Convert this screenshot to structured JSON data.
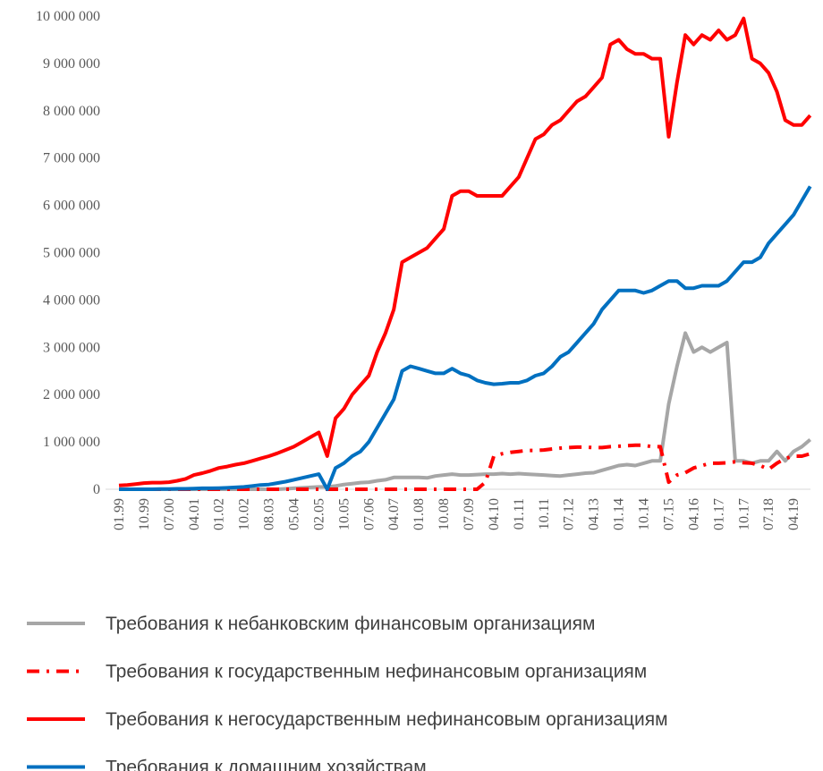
{
  "chart_data": {
    "type": "line",
    "categories": [
      "01.99",
      null,
      null,
      "10.99",
      null,
      null,
      "07.00",
      null,
      null,
      "04.01",
      null,
      null,
      "01.02",
      null,
      null,
      "10.02",
      null,
      null,
      "08.03",
      null,
      null,
      "05.04",
      null,
      null,
      "02.05",
      null,
      null,
      "10.05",
      null,
      null,
      "07.06",
      null,
      null,
      "04.07",
      null,
      null,
      "01.08",
      null,
      null,
      "10.08",
      null,
      null,
      "07.09",
      null,
      null,
      "04.10",
      null,
      null,
      "01.11",
      null,
      null,
      "10.11",
      null,
      null,
      "07.12",
      null,
      null,
      "04.13",
      null,
      null,
      "01.14",
      null,
      null,
      "10.14",
      null,
      null,
      "07.15",
      null,
      null,
      "04.16",
      null,
      null,
      "01.17",
      null,
      null,
      "10.17",
      null,
      null,
      "07.18",
      null,
      null,
      "04.19",
      null,
      null
    ],
    "series": [
      {
        "name": "Требования к небанковским финансовым организациям",
        "color": "#a6a6a6",
        "style": "solid",
        "values": [
          0,
          0,
          0,
          0,
          0,
          0,
          0,
          0,
          0,
          0,
          0,
          0,
          0,
          0,
          0,
          0,
          0,
          0,
          0,
          0,
          10000,
          20000,
          30000,
          40000,
          50000,
          50000,
          70000,
          100000,
          120000,
          140000,
          150000,
          180000,
          200000,
          250000,
          250000,
          250000,
          250000,
          240000,
          280000,
          300000,
          320000,
          300000,
          300000,
          310000,
          320000,
          320000,
          330000,
          320000,
          330000,
          320000,
          310000,
          300000,
          290000,
          280000,
          300000,
          320000,
          340000,
          350000,
          400000,
          450000,
          500000,
          520000,
          500000,
          550000,
          600000,
          600000,
          1800000,
          2600000,
          3300000,
          2900000,
          3000000,
          2900000,
          3000000,
          3100000,
          600000,
          600000,
          550000,
          600000,
          600000,
          800000,
          600000,
          800000,
          900000,
          1050000
        ]
      },
      {
        "name": "Требования к государственным нефинансовым организациям",
        "color": "#ff0000",
        "style": "dash-dot",
        "values": [
          0,
          0,
          0,
          0,
          0,
          0,
          0,
          0,
          0,
          0,
          0,
          0,
          0,
          0,
          0,
          0,
          0,
          0,
          0,
          0,
          0,
          0,
          0,
          0,
          0,
          0,
          0,
          0,
          0,
          0,
          0,
          0,
          0,
          0,
          0,
          0,
          0,
          0,
          0,
          0,
          0,
          0,
          0,
          0,
          150000,
          700000,
          750000,
          780000,
          800000,
          820000,
          820000,
          830000,
          850000,
          870000,
          880000,
          890000,
          890000,
          880000,
          880000,
          900000,
          910000,
          920000,
          930000,
          930000,
          900000,
          900000,
          150000,
          300000,
          350000,
          450000,
          500000,
          550000,
          550000,
          560000,
          580000,
          560000,
          550000,
          500000,
          420000,
          550000,
          650000,
          700000,
          700000,
          750000
        ]
      },
      {
        "name": "Требования к негосударственным нефинансовым организациям",
        "color": "#ff0000",
        "style": "solid",
        "values": [
          80000,
          90000,
          110000,
          130000,
          140000,
          140000,
          150000,
          180000,
          220000,
          300000,
          340000,
          390000,
          450000,
          480000,
          520000,
          550000,
          600000,
          650000,
          700000,
          760000,
          830000,
          900000,
          1000000,
          1100000,
          1200000,
          700000,
          1500000,
          1700000,
          2000000,
          2200000,
          2400000,
          2900000,
          3300000,
          3800000,
          4800000,
          4900000,
          5000000,
          5100000,
          5300000,
          5500000,
          6200000,
          6300000,
          6300000,
          6200000,
          6200000,
          6200000,
          6200000,
          6400000,
          6600000,
          7000000,
          7400000,
          7500000,
          7700000,
          7800000,
          8000000,
          8200000,
          8300000,
          8500000,
          8700000,
          9400000,
          9500000,
          9300000,
          9200000,
          9200000,
          9100000,
          9100000,
          7450000,
          8600000,
          9600000,
          9400000,
          9600000,
          9500000,
          9700000,
          9500000,
          9600000,
          9950000,
          9100000,
          9000000,
          8800000,
          8400000,
          7800000,
          7700000,
          7700000,
          7900000
        ]
      },
      {
        "name": "Требования к домашним хозяйствам",
        "color": "#0070c0",
        "style": "solid",
        "values": [
          0,
          0,
          0,
          0,
          0,
          5000,
          5000,
          10000,
          10000,
          15000,
          20000,
          20000,
          25000,
          30000,
          40000,
          50000,
          70000,
          90000,
          100000,
          130000,
          160000,
          200000,
          240000,
          280000,
          320000,
          0,
          450000,
          550000,
          700000,
          800000,
          1000000,
          1300000,
          1600000,
          1900000,
          2500000,
          2600000,
          2550000,
          2500000,
          2450000,
          2450000,
          2550000,
          2450000,
          2400000,
          2300000,
          2250000,
          2220000,
          2230000,
          2250000,
          2250000,
          2300000,
          2400000,
          2450000,
          2600000,
          2800000,
          2900000,
          3100000,
          3300000,
          3500000,
          3800000,
          4000000,
          4200000,
          4200000,
          4200000,
          4150000,
          4200000,
          4300000,
          4400000,
          4400000,
          4250000,
          4250000,
          4300000,
          4300000,
          4300000,
          4400000,
          4600000,
          4800000,
          4800000,
          4900000,
          5200000,
          5400000,
          5600000,
          5800000,
          6100000,
          6400000
        ]
      }
    ],
    "ylim": [
      0,
      10000000
    ],
    "yticks": [
      0,
      {
        "value": 1000000,
        "label": "1 000 000"
      },
      {
        "value": 2000000,
        "label": "2 000 000"
      },
      {
        "value": 3000000,
        "label": "3 000 000"
      },
      {
        "value": 4000000,
        "label": "4 000 000"
      },
      {
        "value": 5000000,
        "label": "5 000 000"
      },
      {
        "value": 6000000,
        "label": "6 000 000"
      },
      {
        "value": 7000000,
        "label": "7 000 000"
      },
      {
        "value": 8000000,
        "label": "8 000 000"
      },
      {
        "value": 9000000,
        "label": "9 000 000"
      },
      {
        "value": 10000000,
        "label": "10 000 000"
      }
    ],
    "grid": false,
    "legend": "bottom"
  }
}
